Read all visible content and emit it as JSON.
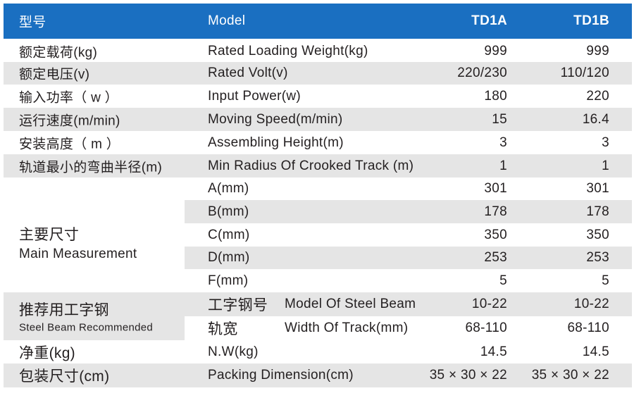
{
  "header": {
    "label_cn": "型号",
    "label_en": "Model",
    "models": [
      "TD1A",
      "TD1B"
    ]
  },
  "rows": [
    {
      "cn": "额定载荷(kg)",
      "en": "Rated Loading Weight(kg)",
      "values": [
        "999",
        "999"
      ]
    },
    {
      "cn": "额定电压(v)",
      "en": "Rated Volt(v)",
      "values": [
        "220/230",
        "110/120"
      ]
    },
    {
      "cn": "输入功率（ w ）",
      "en": "Input Power(w)",
      "values": [
        "180",
        "220"
      ]
    },
    {
      "cn": "运行速度(m/min)",
      "en": "Moving Speed(m/min)",
      "values": [
        "15",
        "16.4"
      ]
    },
    {
      "cn": "安装高度（ m ）",
      "en": "Assembling Height(m)",
      "values": [
        "3",
        "3"
      ]
    },
    {
      "cn": "轨道最小的弯曲半径(m)",
      "en": "Min Radius Of Crooked Track (m)",
      "values": [
        "1",
        "1"
      ]
    }
  ],
  "measurement": {
    "cn": "主要尺寸",
    "en": "Main Measurement",
    "rows": [
      {
        "label": "A(mm)",
        "values": [
          "301",
          "301"
        ]
      },
      {
        "label": "B(mm)",
        "values": [
          "178",
          "178"
        ]
      },
      {
        "label": "C(mm)",
        "values": [
          "350",
          "350"
        ]
      },
      {
        "label": "D(mm)",
        "values": [
          "253",
          "253"
        ]
      },
      {
        "label": "F(mm)",
        "values": [
          "5",
          "5"
        ]
      }
    ]
  },
  "steel_beam": {
    "cn": "推荐用工字钢",
    "en": "Steel Beam Recommended",
    "rows": [
      {
        "cn": "工字钢号",
        "en": "Model Of Steel Beam",
        "values": [
          "10-22",
          "10-22"
        ]
      },
      {
        "cn": "轨宽",
        "en": "Width Of Track(mm)",
        "values": [
          "68-110",
          "68-110"
        ]
      }
    ]
  },
  "rows_bottom": [
    {
      "cn": "净重(kg)",
      "en": "N.W(kg)",
      "values": [
        "14.5",
        "14.5"
      ]
    },
    {
      "cn": "包装尺寸(cm)",
      "en": "Packing Dimension(cm)",
      "values": [
        "35 × 30 × 22",
        "35 × 30 × 22"
      ]
    }
  ]
}
